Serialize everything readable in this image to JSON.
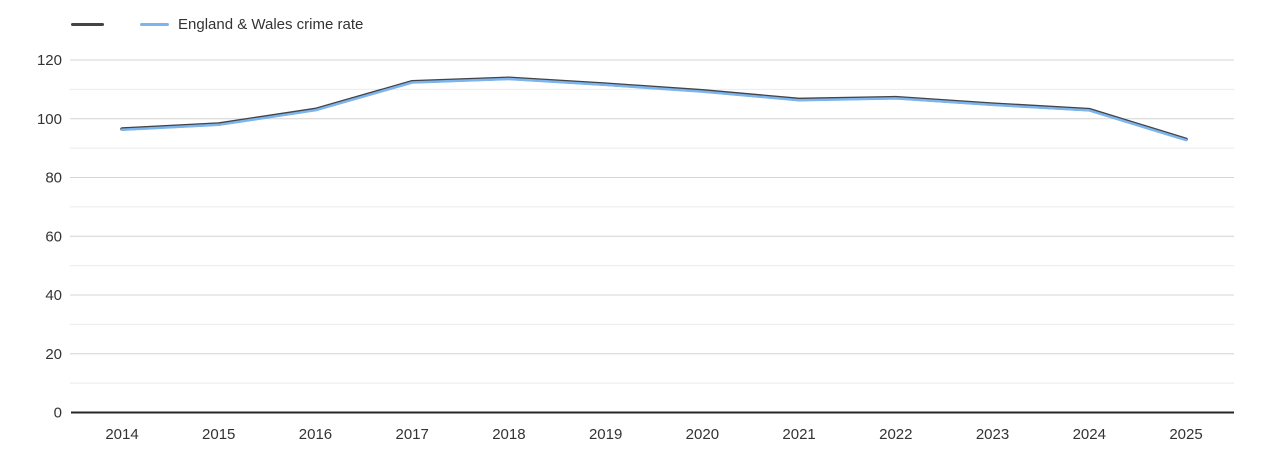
{
  "chart_data": {
    "type": "line",
    "title": "",
    "xlabel": "",
    "ylabel": "",
    "categories": [
      "2014",
      "2015",
      "2016",
      "2017",
      "2018",
      "2019",
      "2020",
      "2021",
      "2022",
      "2023",
      "2024",
      "2025"
    ],
    "series": [
      {
        "name": "",
        "color": "#434348",
        "values": [
          96.5,
          98.2,
          103.2,
          112.6,
          113.8,
          111.8,
          109.5,
          106.6,
          107.2,
          105.0,
          103.1,
          93.0
        ]
      },
      {
        "name": "England & Wales crime rate",
        "color": "#7cb5ec",
        "values": [
          96.5,
          98.2,
          103.2,
          112.6,
          113.8,
          111.8,
          109.5,
          106.6,
          107.2,
          105.0,
          103.1,
          93.0
        ]
      }
    ],
    "ylim": [
      0,
      125
    ],
    "y_ticks": [
      0,
      20,
      40,
      60,
      80,
      100,
      120
    ],
    "y_minor_ticks": [
      10,
      30,
      50,
      70,
      90,
      110
    ],
    "grid": true,
    "legend_position": "top-left",
    "colors": {
      "axis_line": "#262626",
      "major_grid": "#d4d4d4",
      "minor_grid": "#ebebeb",
      "tick_label": "#333333"
    }
  }
}
